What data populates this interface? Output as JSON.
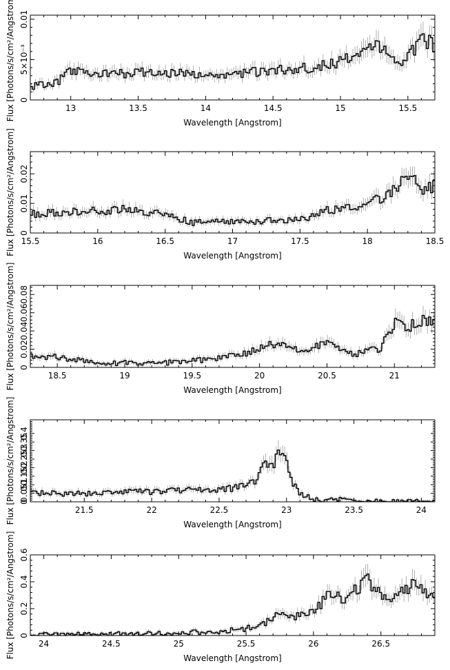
{
  "colors": {
    "axis": "#000000",
    "step": "#000000",
    "error": "#9a9a9a",
    "background": "#ffffff"
  },
  "chart_data": [
    {
      "type": "line",
      "title": "",
      "xlabel": "Wavelength [Angstrom]",
      "ylabel": "Flux [Photons/s/cm²/Angstrom]",
      "xlim": [
        12.7,
        15.7
      ],
      "ylim": [
        0,
        0.0105
      ],
      "xticks": [
        13,
        13.5,
        14,
        14.5,
        15,
        15.5
      ],
      "xtick_labels": [
        "13",
        "13.5",
        "14",
        "14.5",
        "15",
        "15.5"
      ],
      "yticks": [
        0,
        0.005,
        0.01
      ],
      "ytick_labels": [
        "0",
        "5×10⁻³",
        "0.01"
      ],
      "grid": false,
      "series": [
        {
          "x": [
            12.7,
            12.9,
            13.0,
            13.2,
            13.5,
            13.8,
            14.0,
            14.2,
            14.5,
            14.8,
            15.0,
            15.15,
            15.25,
            15.35,
            15.45,
            15.55,
            15.6,
            15.7
          ],
          "y": [
            0.0016,
            0.0022,
            0.0036,
            0.0031,
            0.0034,
            0.0033,
            0.003,
            0.0033,
            0.0036,
            0.004,
            0.0047,
            0.0057,
            0.0071,
            0.0055,
            0.0045,
            0.0062,
            0.0078,
            0.0068
          ]
        }
      ]
    },
    {
      "type": "line",
      "title": "",
      "xlabel": "Wavelength [Angstrom]",
      "ylabel": "Flux [Photons/s/cm²/Angstrom]",
      "xlim": [
        15.5,
        18.5
      ],
      "ylim": [
        0,
        0.0275
      ],
      "xticks": [
        15.5,
        16,
        16.5,
        17,
        17.5,
        18,
        18.5
      ],
      "xtick_labels": [
        "15.5",
        "16",
        "16.5",
        "17",
        "17.5",
        "18",
        "18.5"
      ],
      "yticks": [
        0,
        0.01,
        0.02
      ],
      "ytick_labels": [
        "0",
        "0.01",
        "0.02"
      ],
      "grid": false,
      "series": [
        {
          "x": [
            15.5,
            15.8,
            16.0,
            16.2,
            16.5,
            16.7,
            16.9,
            17.0,
            17.2,
            17.5,
            17.7,
            17.9,
            18.0,
            18.2,
            18.3,
            18.4,
            18.5
          ],
          "y": [
            0.0065,
            0.007,
            0.0075,
            0.008,
            0.0065,
            0.0035,
            0.0045,
            0.004,
            0.004,
            0.0045,
            0.0075,
            0.0095,
            0.009,
            0.015,
            0.02,
            0.015,
            0.016
          ]
        }
      ]
    },
    {
      "type": "line",
      "title": "",
      "xlabel": "Wavelength [Angstrom]",
      "ylabel": "Flux [Photons/s/cm²/Angstrom]",
      "xlim": [
        18.3,
        21.3
      ],
      "ylim": [
        0,
        0.09
      ],
      "xticks": [
        18.5,
        19,
        19.5,
        20,
        20.5,
        21
      ],
      "xtick_labels": [
        "18.5",
        "19",
        "19.5",
        "20",
        "20.5",
        "21"
      ],
      "yticks": [
        0,
        0.02,
        0.04,
        0.06,
        0.08
      ],
      "ytick_labels": [
        "0",
        "0.02",
        "0.04",
        "0.06",
        "0.08"
      ],
      "grid": false,
      "series": [
        {
          "x": [
            18.3,
            18.5,
            18.7,
            18.8,
            19.0,
            19.3,
            19.5,
            19.7,
            19.9,
            20.1,
            20.3,
            20.5,
            20.7,
            20.9,
            21.0,
            21.1,
            21.3
          ],
          "y": [
            0.012,
            0.012,
            0.007,
            0.004,
            0.005,
            0.005,
            0.007,
            0.01,
            0.015,
            0.025,
            0.02,
            0.025,
            0.015,
            0.02,
            0.05,
            0.045,
            0.055
          ]
        }
      ]
    },
    {
      "type": "line",
      "title": "",
      "xlabel": "Wavelength [Angstrom]",
      "ylabel": "Flux [Photons/s/cm²/Angstrom]",
      "xlim": [
        21.1,
        24.1
      ],
      "ylim": [
        0,
        0.48
      ],
      "xticks": [
        21.5,
        22,
        22.5,
        23,
        23.5,
        24
      ],
      "xtick_labels": [
        "21.5",
        "22",
        "22.5",
        "23",
        "23.5",
        "24"
      ],
      "yticks": [
        0,
        0.05,
        0.1,
        0.15,
        0.2,
        0.25,
        0.3,
        0.35,
        0.4
      ],
      "ytick_labels": [
        "0",
        "0.05",
        "0.1",
        "0.15",
        "0.2",
        "0.25",
        "0.3",
        "0.35",
        "0.4"
      ],
      "grid": false,
      "series": [
        {
          "x": [
            21.1,
            21.5,
            22.0,
            22.4,
            22.6,
            22.75,
            22.85,
            22.9,
            22.95,
            23.0,
            23.05,
            23.1,
            23.2,
            23.3,
            23.35,
            23.5,
            24.1
          ],
          "y": [
            0.05,
            0.05,
            0.06,
            0.07,
            0.08,
            0.11,
            0.22,
            0.2,
            0.33,
            0.22,
            0.1,
            0.05,
            0.015,
            0.01,
            0.018,
            0.004,
            0.005
          ]
        }
      ]
    },
    {
      "type": "line",
      "title": "",
      "xlabel": "Wavelength [Angstrom]",
      "ylabel": "Flux [Photons/s/cm²/Angstrom]",
      "xlim": [
        23.9,
        26.9
      ],
      "ylim": [
        0,
        0.6
      ],
      "xticks": [
        24,
        24.5,
        25,
        25.5,
        26,
        26.5
      ],
      "xtick_labels": [
        "24",
        "24.5",
        "25",
        "25.5",
        "26",
        "26.5"
      ],
      "yticks": [
        0,
        0.2,
        0.4,
        0.6
      ],
      "ytick_labels": [
        "0",
        "0.2",
        "0.4",
        "0.6"
      ],
      "grid": false,
      "series": [
        {
          "x": [
            23.9,
            24.5,
            25.0,
            25.3,
            25.5,
            25.65,
            25.75,
            25.85,
            25.95,
            26.05,
            26.1,
            26.25,
            26.4,
            26.5,
            26.6,
            26.75,
            26.9
          ],
          "y": [
            0.005,
            0.012,
            0.02,
            0.03,
            0.05,
            0.1,
            0.17,
            0.14,
            0.16,
            0.22,
            0.3,
            0.28,
            0.42,
            0.3,
            0.27,
            0.4,
            0.27
          ]
        }
      ]
    }
  ]
}
